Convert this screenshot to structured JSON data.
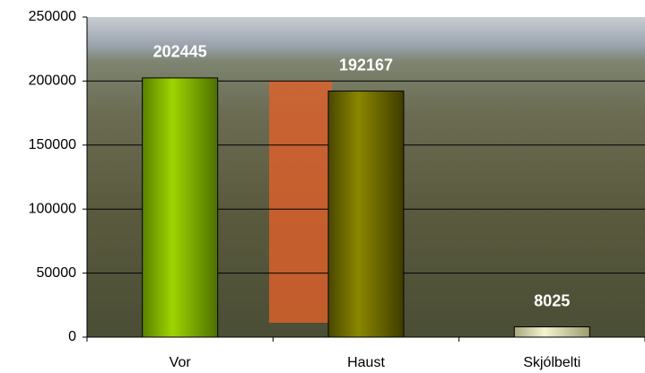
{
  "chart_data": {
    "type": "bar",
    "categories": [
      "Vor",
      "Haust",
      "Skjólbelti"
    ],
    "values": [
      202445,
      192167,
      8025
    ],
    "colors": [
      "#8cc000",
      "#6b6a00",
      "#e6e6b0"
    ],
    "ylim": [
      0,
      250000
    ],
    "yticks": [
      0,
      50000,
      100000,
      150000,
      200000,
      250000
    ],
    "grid": true
  }
}
